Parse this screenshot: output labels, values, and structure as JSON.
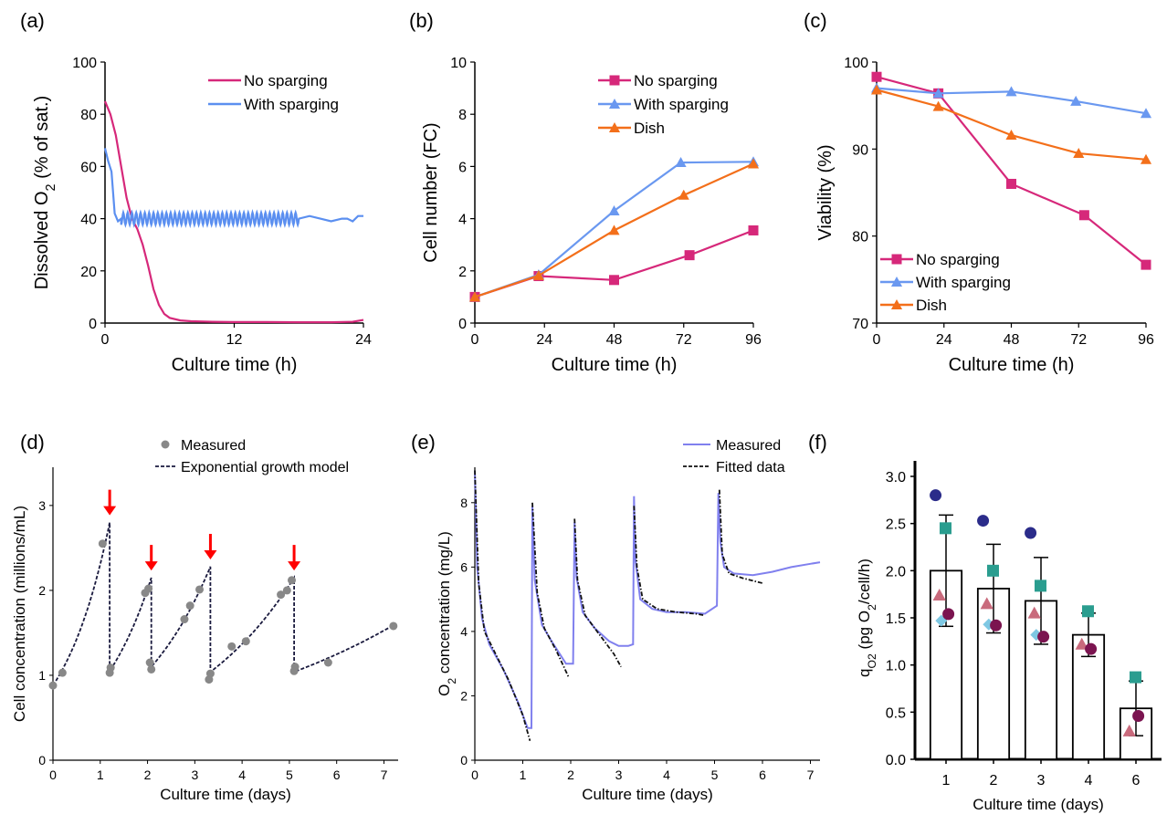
{
  "chart_data": [
    {
      "panel": "(a)",
      "type": "line",
      "xlabel": "Culture time (h)",
      "ylabel": "Dissolved O",
      "ylabel_sub": "2",
      "ylabel_suffix": " (% of sat.)",
      "xlim": [
        0,
        24
      ],
      "ylim": [
        0,
        100
      ],
      "xticks": [
        0,
        12,
        24
      ],
      "yticks": [
        0,
        20,
        40,
        60,
        80,
        100
      ],
      "legend_position": "top-right",
      "series": [
        {
          "name": "No sparging",
          "color": "#d6287a",
          "x": [
            0,
            0.5,
            1,
            1.5,
            2,
            2.5,
            3,
            3.5,
            4,
            4.5,
            5,
            5.5,
            6,
            7,
            8,
            10,
            12,
            15,
            18,
            21,
            23,
            24
          ],
          "y": [
            85,
            80,
            72,
            60,
            48,
            40,
            36,
            30,
            22,
            13,
            7,
            3.5,
            2,
            1,
            0.7,
            0.5,
            0.4,
            0.4,
            0.3,
            0.3,
            0.5,
            1.2
          ]
        },
        {
          "name": "With sparging",
          "color": "#5b8ff0",
          "oscillating": true,
          "x": [
            0,
            0.3,
            0.6,
            0.9,
            1.2,
            1.5,
            18,
            19,
            20,
            21,
            22,
            22.5,
            23,
            23.5,
            24
          ],
          "y": [
            67,
            62,
            58,
            42,
            39,
            40,
            40,
            41,
            40,
            39,
            40,
            40,
            39,
            41,
            41
          ]
        }
      ]
    },
    {
      "panel": "(b)",
      "type": "line",
      "xlabel": "Culture time (h)",
      "ylabel": "Cell number (FC)",
      "xlim": [
        0,
        96
      ],
      "ylim": [
        0,
        10
      ],
      "xticks": [
        0,
        24,
        48,
        72,
        96
      ],
      "yticks": [
        0,
        2,
        4,
        6,
        8,
        10
      ],
      "legend_position": "top-right",
      "series": [
        {
          "name": "No sparging",
          "color": "#d6287a",
          "marker": "square",
          "x": [
            0,
            22,
            48,
            74,
            96
          ],
          "y": [
            1.0,
            1.8,
            1.65,
            2.6,
            3.55
          ]
        },
        {
          "name": "With sparging",
          "color": "#6a98f0",
          "marker": "triangle",
          "x": [
            0,
            22,
            48,
            71,
            96
          ],
          "y": [
            1.0,
            1.85,
            4.3,
            6.15,
            6.18
          ]
        },
        {
          "name": "Dish",
          "color": "#f36f1a",
          "marker": "triangle",
          "x": [
            0,
            22,
            48,
            72,
            96
          ],
          "y": [
            1.0,
            1.82,
            3.55,
            4.9,
            6.1
          ]
        }
      ]
    },
    {
      "panel": "(c)",
      "type": "line",
      "xlabel": "Culture time (h)",
      "ylabel": "Viability (%)",
      "xlim": [
        0,
        96
      ],
      "ylim": [
        70,
        100
      ],
      "xticks": [
        0,
        24,
        48,
        72,
        96
      ],
      "yticks": [
        70,
        80,
        90,
        100
      ],
      "legend_position": "bottom-left",
      "series": [
        {
          "name": "No sparging",
          "color": "#d6287a",
          "marker": "square",
          "x": [
            0,
            22,
            48,
            74,
            96
          ],
          "y": [
            98.3,
            96.4,
            86.0,
            82.4,
            76.7
          ]
        },
        {
          "name": "With sparging",
          "color": "#6a98f0",
          "marker": "triangle",
          "x": [
            0,
            22,
            48,
            71,
            96
          ],
          "y": [
            97.0,
            96.4,
            96.6,
            95.5,
            94.1
          ]
        },
        {
          "name": "Dish",
          "color": "#f36f1a",
          "marker": "triangle",
          "x": [
            0,
            22,
            48,
            72,
            96
          ],
          "y": [
            96.8,
            94.9,
            91.6,
            89.5,
            88.8
          ]
        }
      ]
    },
    {
      "panel": "(d)",
      "type": "scatter",
      "xlabel": "Culture time (days)",
      "ylabel": "Cell concentration (millions/mL)",
      "xlim": [
        0,
        7.3
      ],
      "ylim": [
        0,
        3.45
      ],
      "xticks": [
        0,
        1,
        2,
        3,
        4,
        5,
        6,
        7
      ],
      "yticks": [
        0,
        1,
        2,
        3
      ],
      "legend_position": "top",
      "measured": {
        "name": "Measured",
        "color": "#888888",
        "x": [
          0,
          0.2,
          1.05,
          1.2,
          1.22,
          1.95,
          2.02,
          2.05,
          2.08,
          2.78,
          2.9,
          3.1,
          3.3,
          3.33,
          3.78,
          4.08,
          4.82,
          4.95,
          5.05,
          5.1,
          5.12,
          5.82,
          7.2
        ],
        "y": [
          0.88,
          1.03,
          2.55,
          1.03,
          1.09,
          1.97,
          2.02,
          1.15,
          1.07,
          1.66,
          1.82,
          2.01,
          0.95,
          1.02,
          1.34,
          1.4,
          1.95,
          2.0,
          2.12,
          1.05,
          1.1,
          1.15,
          1.58
        ]
      },
      "model": {
        "name": "Exponential growth model",
        "color": "#1a1a3e",
        "segments": [
          {
            "t0": 0,
            "t1": 1.2,
            "y0": 0.88,
            "y1": 2.8
          },
          {
            "t0": 1.2,
            "t1": 2.08,
            "y0": 1.05,
            "y1": 2.15
          },
          {
            "t0": 2.08,
            "t1": 3.33,
            "y0": 1.1,
            "y1": 2.28
          },
          {
            "t0": 3.33,
            "t1": 5.1,
            "y0": 1.04,
            "y1": 2.15
          },
          {
            "t0": 5.1,
            "t1": 7.2,
            "y0": 1.04,
            "y1": 1.59
          }
        ]
      },
      "arrows": {
        "color": "#ff0000",
        "x": [
          1.2,
          2.08,
          3.33,
          5.1
        ],
        "y": [
          2.82,
          2.17,
          2.3,
          2.17
        ]
      }
    },
    {
      "panel": "(e)",
      "type": "line",
      "xlabel": "Culture time (days)",
      "ylabel": "O",
      "ylabel_sub": "2",
      "ylabel_suffix": " concentration (mg/L)",
      "xlim": [
        0,
        7.2
      ],
      "ylim": [
        0,
        9.1
      ],
      "xticks": [
        0,
        1,
        2,
        3,
        4,
        5,
        6,
        7
      ],
      "yticks": [
        0,
        2,
        4,
        6,
        8
      ],
      "legend_position": "top-right",
      "series": [
        {
          "name": "Measured",
          "color": "#8080ee",
          "x": [
            0,
            0.05,
            0.15,
            0.3,
            0.6,
            0.9,
            1.1,
            1.18,
            1.2,
            1.25,
            1.4,
            1.6,
            1.9,
            2.05,
            2.08,
            2.12,
            2.25,
            2.5,
            2.8,
            3.0,
            3.2,
            3.3,
            3.32,
            3.35,
            3.45,
            3.7,
            4.0,
            4.4,
            4.8,
            5.05,
            5.08,
            5.12,
            5.2,
            5.4,
            5.8,
            6.2,
            6.6,
            7.0,
            7.2
          ],
          "y": [
            9.0,
            6.0,
            4.4,
            3.6,
            2.8,
            1.8,
            1.0,
            1.0,
            7.9,
            5.6,
            4.2,
            3.7,
            3.0,
            3.0,
            7.4,
            5.7,
            4.6,
            4.1,
            3.7,
            3.55,
            3.55,
            3.6,
            8.2,
            6.2,
            5.0,
            4.7,
            4.6,
            4.6,
            4.55,
            4.8,
            8.3,
            6.8,
            6.0,
            5.8,
            5.75,
            5.85,
            6.0,
            6.1,
            6.15
          ]
        },
        {
          "name": "Fitted data",
          "color": "#111111",
          "segments": [
            {
              "x": [
                0,
                0.08,
                0.2,
                0.4,
                0.7,
                1.0,
                1.15
              ],
              "y": [
                9.0,
                5.5,
                4.0,
                3.4,
                2.5,
                1.4,
                0.6
              ]
            },
            {
              "x": [
                1.2,
                1.3,
                1.45,
                1.7,
                1.95
              ],
              "y": [
                8.0,
                5.2,
                4.1,
                3.4,
                2.6
              ]
            },
            {
              "x": [
                2.08,
                2.14,
                2.3,
                2.6,
                2.9,
                3.05
              ],
              "y": [
                7.5,
                5.6,
                4.5,
                3.9,
                3.3,
                2.9
              ]
            },
            {
              "x": [
                3.32,
                3.38,
                3.5,
                3.8,
                4.2,
                4.6,
                4.8
              ],
              "y": [
                7.9,
                6.0,
                5.0,
                4.7,
                4.6,
                4.55,
                4.5
              ]
            },
            {
              "x": [
                5.1,
                5.16,
                5.3,
                5.6,
                6.0
              ],
              "y": [
                8.4,
                6.4,
                5.8,
                5.65,
                5.5
              ]
            }
          ]
        }
      ]
    },
    {
      "panel": "(f)",
      "type": "bar",
      "xlabel": "Culture time (days)",
      "ylabel": "q",
      "ylabel_sub": "O2",
      "ylabel_suffix": " (pg O",
      "ylabel_sub2": "2",
      "ylabel_suffix2": "/cell/h)",
      "ylim": [
        0,
        3.0
      ],
      "yticks": [
        "0.0",
        "0.5",
        "1.0",
        "1.5",
        "2.0",
        "2.5",
        "3.0"
      ],
      "categories": [
        "1",
        "2",
        "3",
        "4",
        "6"
      ],
      "values": [
        2.0,
        1.81,
        1.68,
        1.32,
        0.54
      ],
      "errors": [
        0.59,
        0.47,
        0.46,
        0.23,
        0.29
      ],
      "points": [
        {
          "shape": "circle",
          "color": "#2b2c8a",
          "dx": -0.22,
          "values": [
            2.8,
            2.53,
            2.4,
            null,
            null
          ]
        },
        {
          "shape": "square",
          "color": "#2a9d8f",
          "dx": -0.01,
          "values": [
            2.45,
            2.0,
            1.84,
            1.57,
            0.87
          ]
        },
        {
          "shape": "triangle",
          "color": "#c96a7c",
          "dx": -0.14,
          "values": [
            1.74,
            1.65,
            1.55,
            1.22,
            0.3
          ]
        },
        {
          "shape": "diamond",
          "color": "#7ec8e3",
          "dx": -0.1,
          "values": [
            1.47,
            1.43,
            1.32,
            null,
            null
          ]
        },
        {
          "shape": "circle",
          "color": "#7b1450",
          "dx": 0.05,
          "values": [
            1.54,
            1.42,
            1.3,
            1.17,
            0.46
          ]
        }
      ]
    }
  ]
}
